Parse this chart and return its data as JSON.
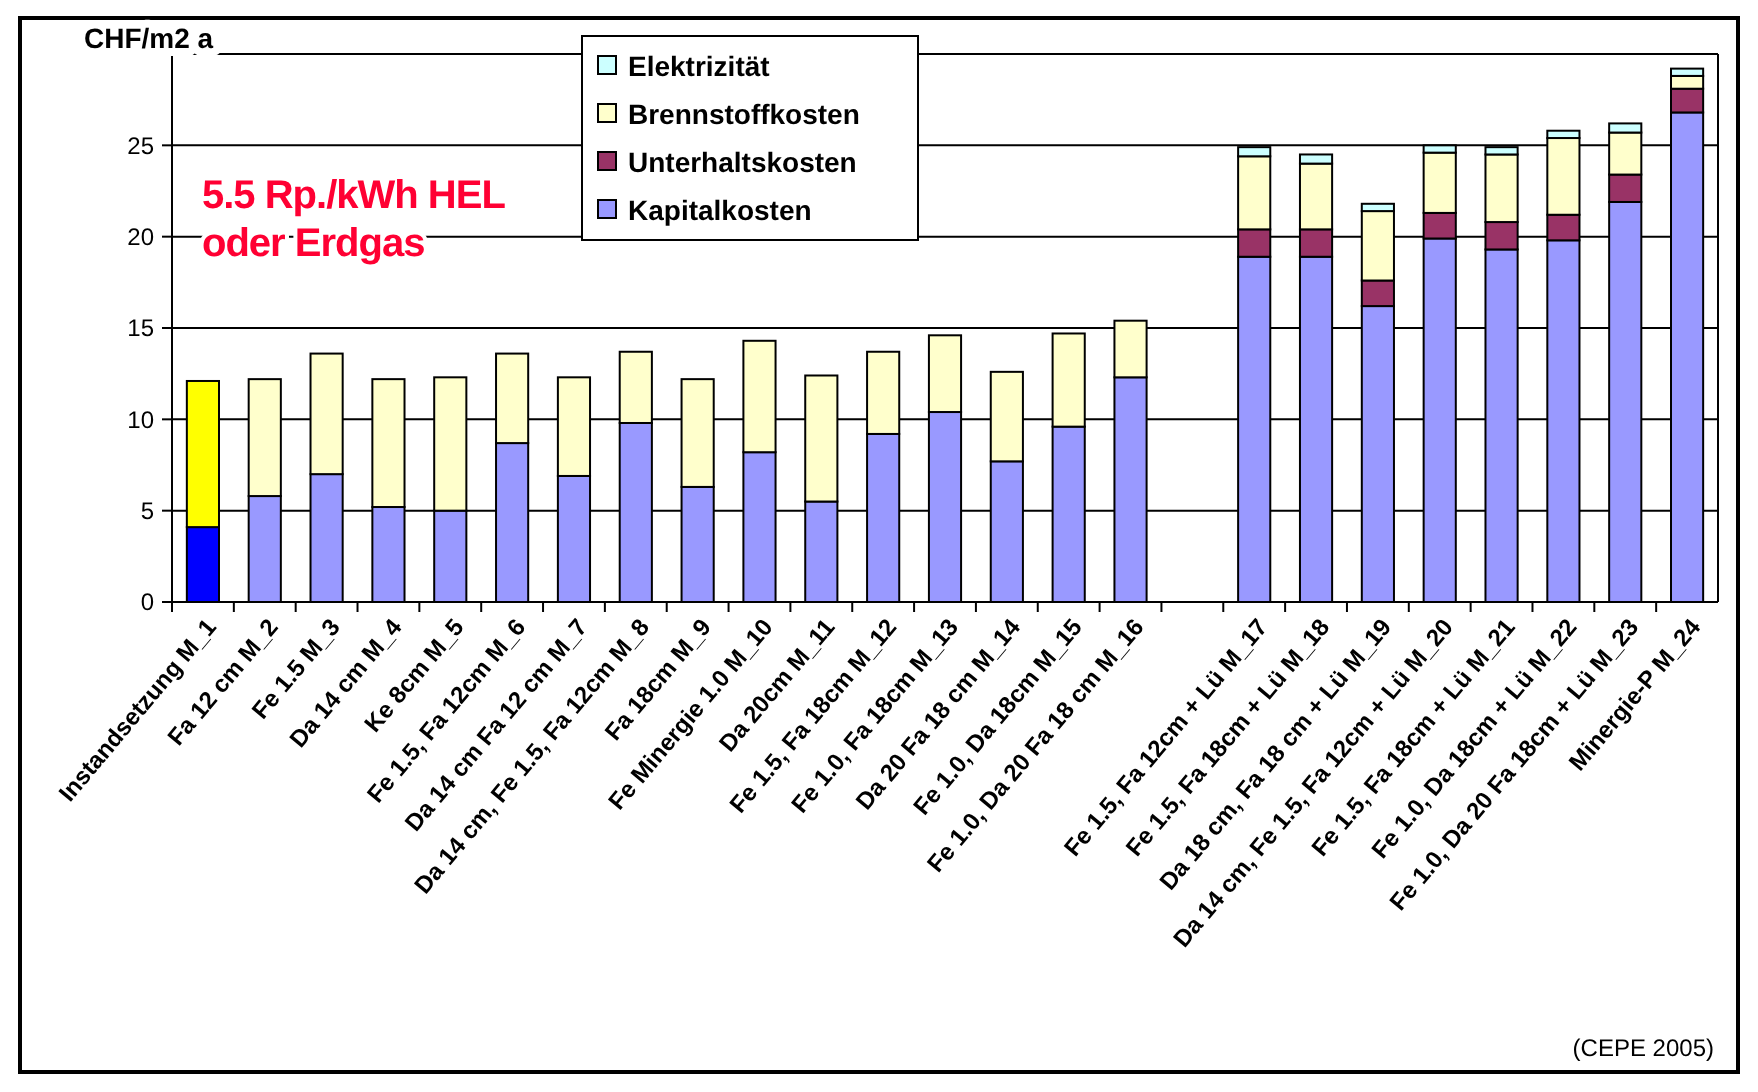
{
  "chart_data": {
    "type": "bar",
    "stacked": true,
    "ylabel": "CHF/m2 a",
    "categories": [
      "Instandsetzung M_1",
      "Fa 12 cm M_2",
      "Fe 1.5 M_3",
      "Da 14 cm M_4",
      "Ke 8cm M_5",
      "Fe 1.5, Fa 12cm M_6",
      "Da 14 cm   Fa 12 cm M_7",
      "Da 14 cm, Fe 1.5, Fa 12cm M_8",
      "Fa 18cm M_9",
      "Fe Minergie 1.0 M_10",
      "Da 20cm M_11",
      "Fe 1.5, Fa 18cm M_12",
      "Fe 1.0, Fa 18cm M_13",
      "Da 20  Fa 18 cm M_14",
      "Fe 1.0, Da 18cm M_15",
      "Fe 1.0, Da 20 Fa 18 cm M_16",
      null,
      "Fe 1.5, Fa 12cm + Lü M_17",
      "Fe 1.5, Fa 18cm + Lü M_18",
      "Da 18 cm, Fa 18 cm + Lü M_19",
      "Da 14 cm, Fe 1.5, Fa 12cm + Lü M_20",
      "Fe 1.5, Fa 18cm + Lü M_21",
      "Fe 1.0, Da 18cm + Lü  M_22",
      "Fe 1.0, Da 20  Fa 18cm + Lü M_23",
      "Minergie-P M_24"
    ],
    "series": [
      {
        "name": "Kapitalkosten",
        "color": "#9999ff",
        "colors": [
          "#0000ff",
          "#9999ff",
          "#9999ff",
          "#9999ff",
          "#9999ff",
          "#9999ff",
          "#9999ff",
          "#9999ff",
          "#9999ff",
          "#9999ff",
          "#9999ff",
          "#9999ff",
          "#9999ff",
          "#9999ff",
          "#9999ff",
          "#9999ff",
          null,
          "#9999ff",
          "#9999ff",
          "#9999ff",
          "#9999ff",
          "#9999ff",
          "#9999ff",
          "#9999ff",
          "#9999ff"
        ],
        "values": [
          4.1,
          5.8,
          7.0,
          5.2,
          5.0,
          8.7,
          6.9,
          9.8,
          6.3,
          8.2,
          5.5,
          9.2,
          10.4,
          7.7,
          9.6,
          12.3,
          null,
          18.9,
          18.9,
          16.2,
          19.9,
          19.3,
          19.8,
          21.9,
          26.8
        ]
      },
      {
        "name": "Unterhaltskosten",
        "color": "#993366",
        "values": [
          null,
          null,
          null,
          null,
          null,
          null,
          null,
          null,
          null,
          null,
          null,
          null,
          null,
          null,
          null,
          null,
          null,
          1.5,
          1.5,
          1.4,
          1.4,
          1.5,
          1.4,
          1.5,
          1.3
        ]
      },
      {
        "name": "Brennstoffkosten",
        "color": "#ffffcc",
        "colors": [
          "#ffff00",
          "#ffffcc",
          "#ffffcc",
          "#ffffcc",
          "#ffffcc",
          "#ffffcc",
          "#ffffcc",
          "#ffffcc",
          "#ffffcc",
          "#ffffcc",
          "#ffffcc",
          "#ffffcc",
          "#ffffcc",
          "#ffffcc",
          "#ffffcc",
          "#ffffcc",
          null,
          "#ffffcc",
          "#ffffcc",
          "#ffffcc",
          "#ffffcc",
          "#ffffcc",
          "#ffffcc",
          "#ffffcc",
          "#ffffcc"
        ],
        "values": [
          8.0,
          6.4,
          6.6,
          7.0,
          7.3,
          4.9,
          5.4,
          3.9,
          5.9,
          6.1,
          6.9,
          4.5,
          4.2,
          4.9,
          5.1,
          3.1,
          null,
          4.0,
          3.6,
          3.8,
          3.3,
          3.7,
          4.2,
          2.3,
          0.7
        ]
      },
      {
        "name": "Elektrizität",
        "color": "#ccffff",
        "values": [
          null,
          null,
          null,
          null,
          null,
          null,
          null,
          null,
          null,
          null,
          null,
          null,
          null,
          null,
          null,
          null,
          null,
          0.5,
          0.5,
          0.4,
          0.4,
          0.4,
          0.4,
          0.5,
          0.4
        ]
      }
    ],
    "ylim": [
      0,
      30
    ],
    "yticks": [
      0,
      5,
      10,
      15,
      20,
      25,
      {
        "value": 30,
        "label": null
      }
    ],
    "grid": "y",
    "legend": "top",
    "annotations": [
      "5.5 Rp./kWh HEL\noder Erdgas",
      "(CEPE 2005)"
    ]
  }
}
